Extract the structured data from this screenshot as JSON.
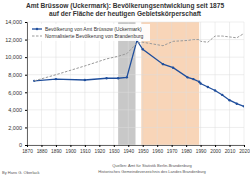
{
  "chart_data": {
    "type": "line",
    "title": "Amt Brüssow (Uckermark): Bevölkerungsentwicklung seit 1875",
    "subtitle": "auf der Fläche der heutigen Gebietskörperschaft",
    "x": [
      1875,
      1890,
      1910,
      1925,
      1933,
      1939,
      1946,
      1950,
      1964,
      1971,
      1981,
      1985,
      1989,
      1990,
      1995,
      2000,
      2005,
      2010,
      2015,
      2020
    ],
    "series": [
      {
        "name": "Bevölkerung von Amt Brüssow (Uckermark)",
        "color": "#1f4e9c",
        "marker": "circle",
        "line_style": "solid",
        "values": [
          7300,
          7500,
          7400,
          7600,
          7600,
          7700,
          11900,
          10900,
          9200,
          8800,
          7700,
          7500,
          7200,
          7000,
          6600,
          6200,
          5700,
          5100,
          4700,
          4400
        ]
      },
      {
        "name": "Normalisierte Bevölkerung von Brandenburg",
        "color": "#999999",
        "line_style": "dashed",
        "values": [
          7300,
          8000,
          9000,
          9800,
          10100,
          10400,
          11600,
          11700,
          11300,
          11800,
          11900,
          12000,
          12000,
          11800,
          11700,
          12400,
          12400,
          12300,
          12200,
          12700
        ]
      }
    ],
    "xlim": [
      1870,
      2020
    ],
    "xticks": [
      1870,
      1880,
      1890,
      1900,
      1910,
      1920,
      1930,
      1940,
      1950,
      1960,
      1970,
      1980,
      1990,
      2000,
      2010,
      2020
    ],
    "ylim": [
      0,
      14000
    ],
    "yticks": [
      0,
      {
        "value": 2000,
        "label": "2,000"
      },
      {
        "value": 4000,
        "label": "4,000"
      },
      {
        "value": 6000,
        "label": "6,000"
      },
      {
        "value": 8000,
        "label": "8,000"
      },
      {
        "value": 10000,
        "label": "10,000"
      },
      {
        "value": 12000,
        "label": "12,000"
      },
      {
        "value": 14000,
        "label": "14,000"
      }
    ],
    "grid": true,
    "legend": "upper-left",
    "shaded_periods": [
      {
        "start": 1933,
        "end": 1945,
        "color": "#c8c8c8"
      },
      {
        "start": 1949,
        "end": 1989,
        "color": "#f8d5b8"
      }
    ],
    "annotations": [
      "By Hans G. Oberlack",
      "Quellen: Amt für Statistik Berlin-Brandenburg",
      "Historisches Gemeindeverzeichnis des Landes Brandenburg"
    ]
  }
}
